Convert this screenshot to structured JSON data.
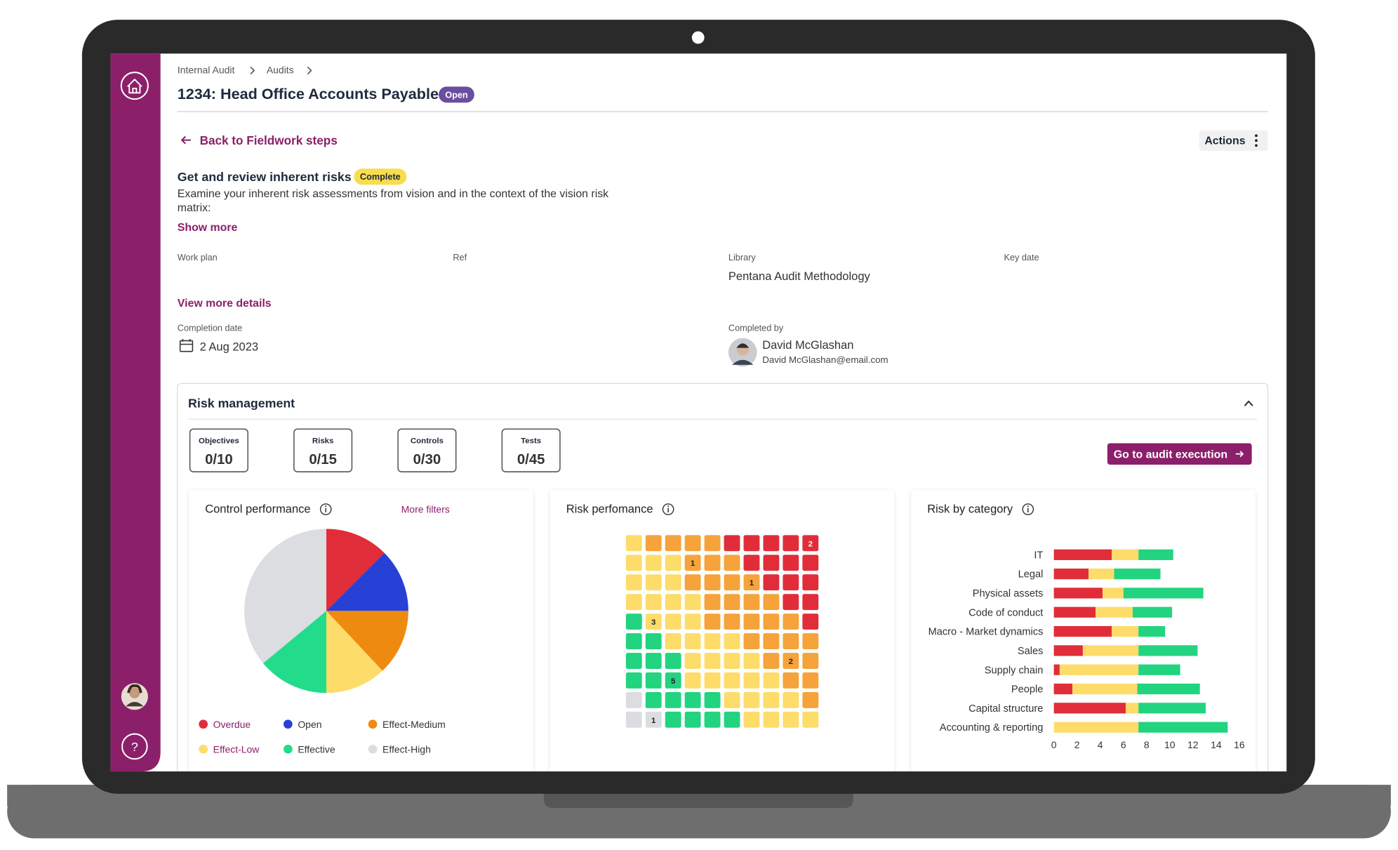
{
  "sidebar": {
    "help": "?"
  },
  "header": {
    "breadcrumbs": [
      "Internal Audit",
      "Audits"
    ],
    "title": "1234: Head Office Accounts Payable",
    "status": "Open"
  },
  "step": {
    "back": "Back to Fieldwork steps",
    "actions": "Actions",
    "title": "Get and review inherent risks",
    "status": "Complete",
    "description": "Examine your inherent risk assessments from vision and in the context of the vision risk matrix:",
    "show_more": "Show more",
    "fields": [
      {
        "label": "Work plan"
      },
      {
        "label": "Ref"
      },
      {
        "label": "Library",
        "value": "Pentana Audit Methodology"
      },
      {
        "label": "Key date"
      }
    ],
    "view_more": "View more details",
    "completion_date": {
      "label": "Completion date",
      "value": "2 Aug 2023"
    },
    "completed_by": {
      "label": "Completed by",
      "name": "David McGlashan",
      "email": "David McGlashan@email.com"
    }
  },
  "risk_management": {
    "title": "Risk management",
    "counters": [
      {
        "label": "Objectives",
        "value": "0/10"
      },
      {
        "label": "Risks",
        "value": "0/15"
      },
      {
        "label": "Controls",
        "value": "0/30"
      },
      {
        "label": "Tests",
        "value": "0/45"
      }
    ],
    "button": "Go to audit execution",
    "more_filters": "More filters"
  },
  "chart_data": [
    {
      "type": "pie",
      "title": "Control performance",
      "categories": [
        "Overdue",
        "Open",
        "Effect-Medium",
        "Effect-Low",
        "Effective",
        "Effect-High"
      ],
      "values": [
        12.5,
        12.5,
        13,
        12,
        14,
        36
      ],
      "colors": [
        "#e12d3a",
        "#2741d6",
        "#ef8a10",
        "#fddc6a",
        "#22dc8c",
        "#dcdde0"
      ]
    },
    {
      "type": "heatmap",
      "title": "Risk perfomance",
      "counts": [
        [
          null,
          null,
          null,
          null,
          null,
          null,
          null,
          null,
          null,
          2
        ],
        [
          null,
          null,
          null,
          1,
          null,
          null,
          null,
          null,
          null,
          null
        ],
        [
          null,
          null,
          null,
          null,
          null,
          null,
          1,
          null,
          null,
          null
        ],
        [
          null,
          null,
          null,
          null,
          null,
          null,
          null,
          null,
          null,
          null
        ],
        [
          null,
          3,
          null,
          null,
          null,
          null,
          null,
          null,
          null,
          null
        ],
        [
          null,
          null,
          null,
          null,
          null,
          null,
          null,
          null,
          null,
          null
        ],
        [
          null,
          null,
          null,
          null,
          null,
          null,
          null,
          null,
          2,
          null
        ],
        [
          null,
          null,
          5,
          null,
          null,
          null,
          null,
          null,
          null,
          null
        ],
        [
          null,
          null,
          null,
          null,
          null,
          null,
          null,
          null,
          null,
          null
        ],
        [
          null,
          1,
          null,
          null,
          null,
          null,
          null,
          null,
          null,
          null
        ]
      ],
      "cell_colors": [
        [
          "#fddc6a",
          "#f5a33a",
          "#f5a33a",
          "#f5a33a",
          "#f5a33a",
          "#e12d3a",
          "#e12d3a",
          "#e12d3a",
          "#e12d3a",
          "#e12d3a"
        ],
        [
          "#fddc6a",
          "#fddc6a",
          "#fddc6a",
          "#f5a33a",
          "#f5a33a",
          "#f5a33a",
          "#e12d3a",
          "#e12d3a",
          "#e12d3a",
          "#e12d3a"
        ],
        [
          "#fddc6a",
          "#fddc6a",
          "#fddc6a",
          "#f5a33a",
          "#f5a33a",
          "#f5a33a",
          "#f5a33a",
          "#e12d3a",
          "#e12d3a",
          "#e12d3a"
        ],
        [
          "#fddc6a",
          "#fddc6a",
          "#fddc6a",
          "#fddc6a",
          "#f5a33a",
          "#f5a33a",
          "#f5a33a",
          "#f5a33a",
          "#e12d3a",
          "#e12d3a"
        ],
        [
          "#22d47f",
          "#fddc6a",
          "#fddc6a",
          "#fddc6a",
          "#f5a33a",
          "#f5a33a",
          "#f5a33a",
          "#f5a33a",
          "#f5a33a",
          "#e12d3a"
        ],
        [
          "#22d47f",
          "#22d47f",
          "#fddc6a",
          "#fddc6a",
          "#fddc6a",
          "#fddc6a",
          "#f5a33a",
          "#f5a33a",
          "#f5a33a",
          "#f5a33a"
        ],
        [
          "#22d47f",
          "#22d47f",
          "#22d47f",
          "#fddc6a",
          "#fddc6a",
          "#fddc6a",
          "#fddc6a",
          "#f5a33a",
          "#f5a33a",
          "#f5a33a"
        ],
        [
          "#22d47f",
          "#22d47f",
          "#22d47f",
          "#fddc6a",
          "#fddc6a",
          "#fddc6a",
          "#fddc6a",
          "#fddc6a",
          "#f5a33a",
          "#f5a33a"
        ],
        [
          "#dcdde0",
          "#22d47f",
          "#22d47f",
          "#22d47f",
          "#22d47f",
          "#fddc6a",
          "#fddc6a",
          "#fddc6a",
          "#fddc6a",
          "#f5a33a"
        ],
        [
          "#dcdde0",
          "#dcdde0",
          "#22d47f",
          "#22d47f",
          "#22d47f",
          "#22d47f",
          "#fddc6a",
          "#fddc6a",
          "#fddc6a",
          "#fddc6a"
        ]
      ]
    },
    {
      "type": "hbar_stacked",
      "title": "Risk by category",
      "categories": [
        "IT",
        "Legal",
        "Physical assets",
        "Code of conduct",
        "Macro - Market dynamics",
        "Sales",
        "Supply chain",
        "People",
        "Capital structure",
        "Accounting & reporting"
      ],
      "series": [
        {
          "color": "#e12d3a",
          "values": [
            5,
            3,
            4.2,
            3.6,
            5,
            2.5,
            0.5,
            1.6,
            6.2,
            0
          ]
        },
        {
          "color": "#fddc6a",
          "values": [
            2.3,
            2.2,
            1.8,
            3.2,
            2.3,
            4.8,
            6.8,
            5.6,
            1.1,
            7.3
          ]
        },
        {
          "color": "#22d47f",
          "values": [
            3,
            4,
            6.9,
            3.4,
            2.3,
            5.1,
            3.6,
            5.4,
            5.8,
            7.7
          ]
        }
      ],
      "xlim": [
        0,
        16
      ],
      "xticks": [
        0,
        2,
        4,
        6,
        8,
        10,
        12,
        14,
        16
      ]
    }
  ]
}
